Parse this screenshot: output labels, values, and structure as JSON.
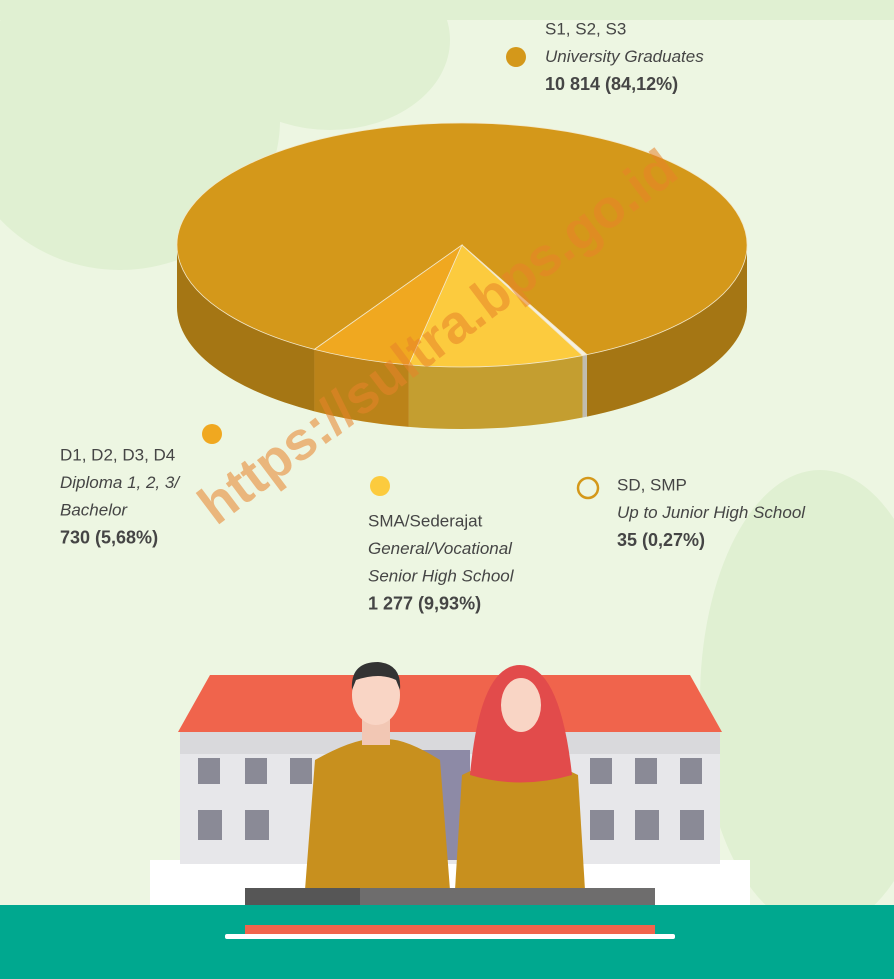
{
  "chart_data": {
    "type": "pie",
    "categories": [
      "S1, S2, S3",
      "D1, D2, D3, D4",
      "SMA/Sederajat",
      "SD, SMP"
    ],
    "descriptions": [
      [
        "University Graduates"
      ],
      [
        "Diploma 1, 2, 3/",
        "Bachelor"
      ],
      [
        "General/Vocational",
        "Senior High School"
      ],
      [
        "Up to Junior High School"
      ]
    ],
    "values": [
      10814,
      730,
      1277,
      35
    ],
    "value_labels": [
      "10 814 (84,12%)",
      "730 (5,68%)",
      "1 277 (9,93%)",
      "35 (0,27%)"
    ],
    "colors": [
      "#d4981a",
      "#f0a820",
      "#fccb3e",
      "#f6f1e2"
    ],
    "watermark": "https://sultra.bps.go.id"
  }
}
